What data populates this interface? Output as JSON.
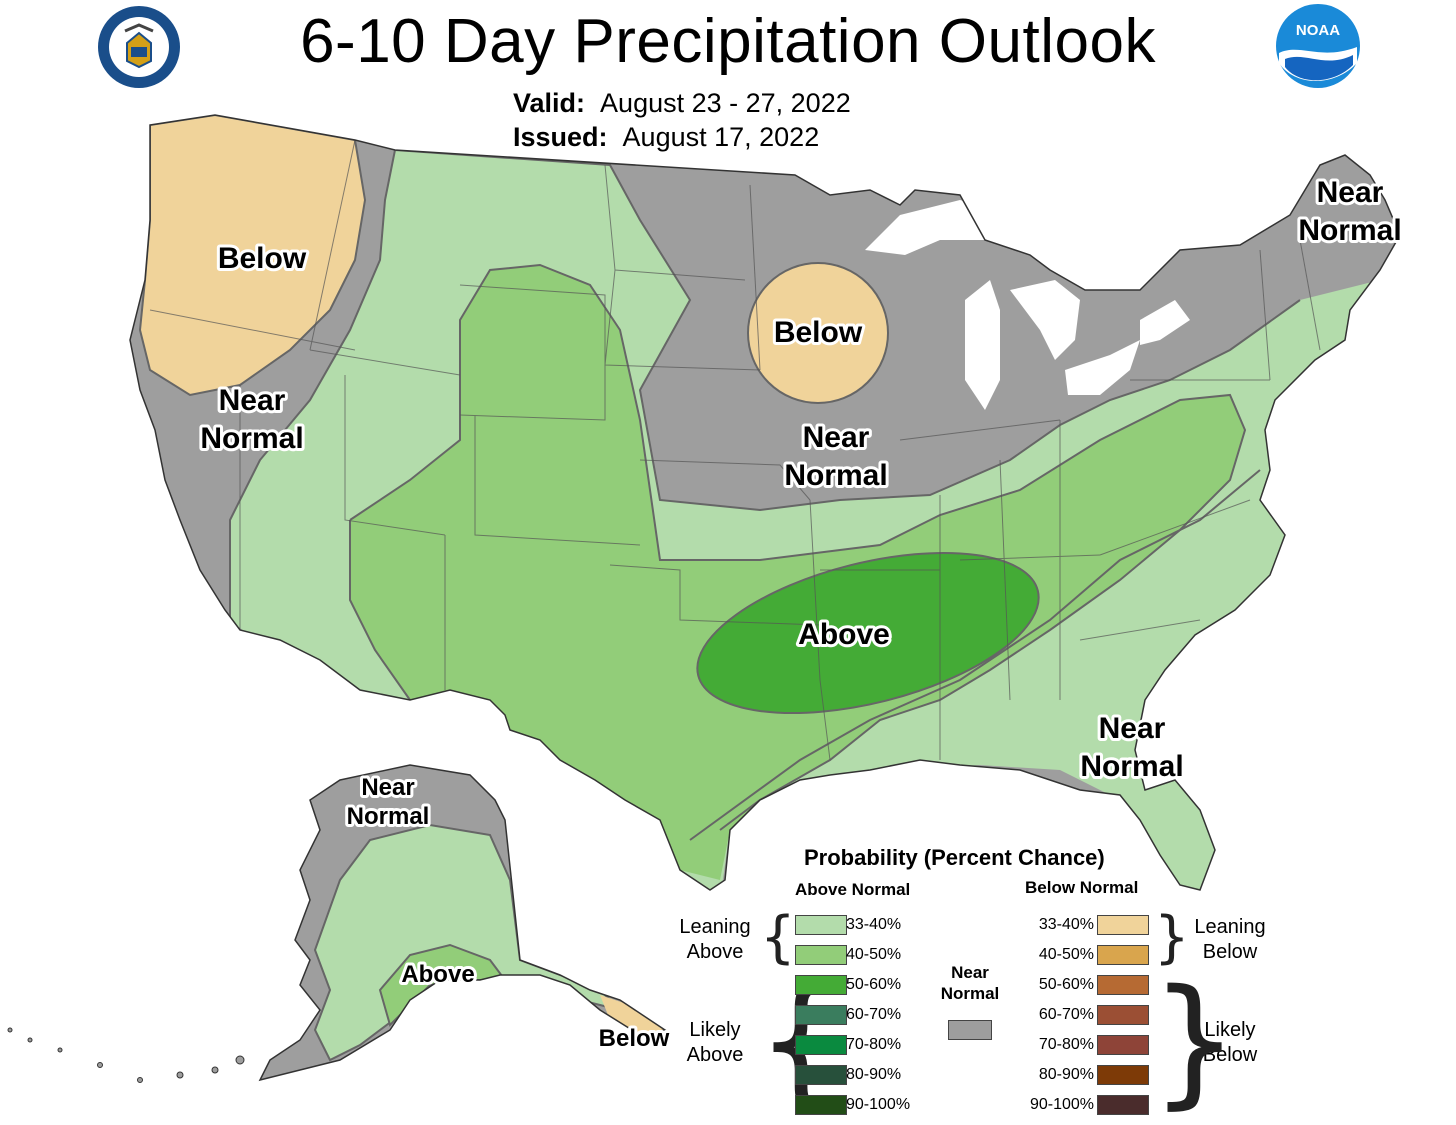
{
  "title": "6-10 Day Precipitation Outlook",
  "valid": {
    "label": "Valid:",
    "value": "August 23 - 27, 2022"
  },
  "issued": {
    "label": "Issued:",
    "value": "August 17, 2022"
  },
  "logos": {
    "left": "department-of-commerce-seal",
    "right": "noaa-logo",
    "right_text": "NOAA"
  },
  "colors": {
    "near_normal": "#9e9e9e",
    "above_33_40": "#b3dcab",
    "above_40_50": "#92cd79",
    "above_50_60": "#44ab36",
    "above_60_70": "#3a7d5e",
    "above_70_80": "#0a8a3f",
    "above_80_90": "#27503b",
    "above_90_100": "#224d17",
    "below_33_40": "#f0d39a",
    "below_40_50": "#d9a54d",
    "below_50_60": "#b66a33",
    "below_60_70": "#9b4f34",
    "below_70_80": "#8e4438",
    "below_80_90": "#7d3a07",
    "below_90_100": "#4a2c2c"
  },
  "regions": {
    "pacific_nw": "Below",
    "west_coast": "Near\nNormal",
    "upper_midwest": "Below",
    "midwest": "Near\nNormal",
    "northeast": "Near\nNormal",
    "central": "Above",
    "southeast": "Near\nNormal",
    "alaska_north": "Near\nNormal",
    "alaska_south": "Above",
    "alaska_panhandle": "Below"
  },
  "legend": {
    "title": "Probability (Percent Chance)",
    "above_header": "Above Normal",
    "below_header": "Below Normal",
    "near_normal": "Near\nNormal",
    "leaning_above": "Leaning\nAbove",
    "likely_above": "Likely\nAbove",
    "leaning_below": "Leaning\nBelow",
    "likely_below": "Likely\nBelow",
    "bins": [
      "33-40%",
      "40-50%",
      "50-60%",
      "60-70%",
      "70-80%",
      "80-90%",
      "90-100%"
    ]
  }
}
